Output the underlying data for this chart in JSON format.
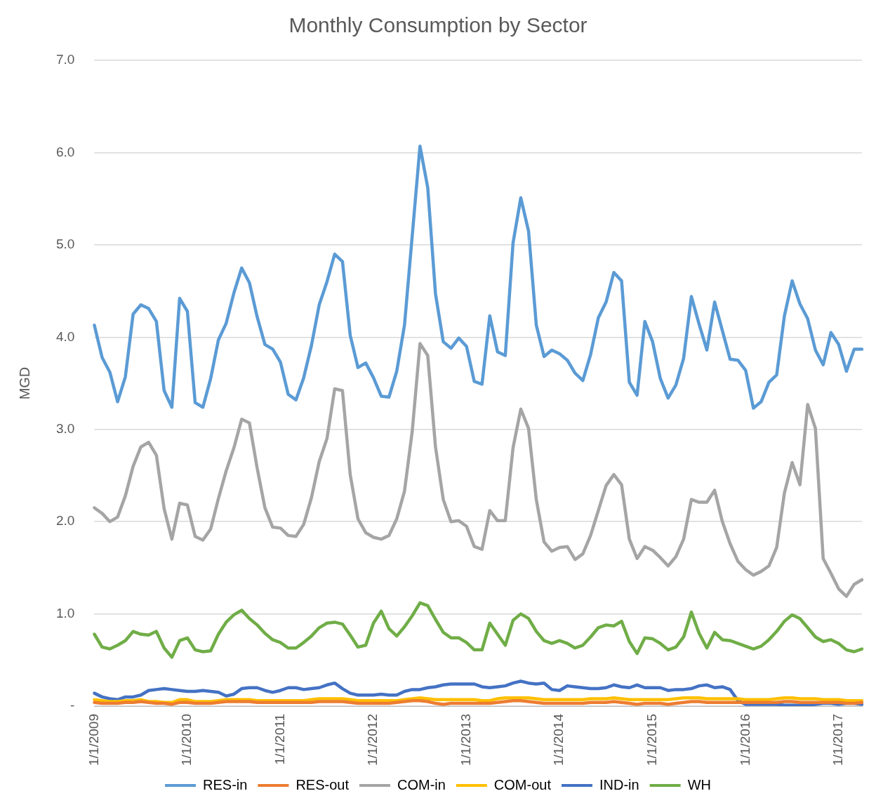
{
  "chart_data": {
    "type": "line",
    "title": "Monthly Consumption by Sector",
    "ylabel": "MGD",
    "categories": [
      "1/1/2009",
      null,
      null,
      null,
      null,
      null,
      null,
      null,
      null,
      null,
      null,
      null,
      "1/1/2010",
      null,
      null,
      null,
      null,
      null,
      null,
      null,
      null,
      null,
      null,
      null,
      "1/1/2011",
      null,
      null,
      null,
      null,
      null,
      null,
      null,
      null,
      null,
      null,
      null,
      "1/1/2012",
      null,
      null,
      null,
      null,
      null,
      null,
      null,
      null,
      null,
      null,
      null,
      "1/1/2013",
      null,
      null,
      null,
      null,
      null,
      null,
      null,
      null,
      null,
      null,
      null,
      "1/1/2014",
      null,
      null,
      null,
      null,
      null,
      null,
      null,
      null,
      null,
      null,
      null,
      "1/1/2015",
      null,
      null,
      null,
      null,
      null,
      null,
      null,
      null,
      null,
      null,
      null,
      "1/1/2016",
      null,
      null,
      null,
      null,
      null,
      null,
      null,
      null,
      null,
      null,
      null,
      "1/1/2017",
      null,
      null,
      null
    ],
    "ylim": [
      0,
      7
    ],
    "yticks": [
      {
        "value": 0,
        "label": "-"
      },
      {
        "value": 1,
        "label": "1.0"
      },
      {
        "value": 2,
        "label": "2.0"
      },
      {
        "value": 3,
        "label": "3.0"
      },
      {
        "value": 4,
        "label": "4.0"
      },
      {
        "value": 5,
        "label": "5.0"
      },
      {
        "value": 6,
        "label": "6.0"
      },
      {
        "value": 7,
        "label": "7.0"
      }
    ],
    "grid": "y",
    "legend": "bottom",
    "marker": "none",
    "line_style": "solid",
    "series": [
      {
        "name": "RES-in",
        "color": "#5b9bd5",
        "values": [
          4.13,
          3.78,
          3.62,
          3.3,
          3.57,
          4.25,
          4.35,
          4.31,
          4.17,
          3.42,
          3.24,
          4.42,
          4.28,
          3.29,
          3.24,
          3.55,
          3.97,
          4.15,
          4.48,
          4.75,
          4.59,
          4.22,
          3.92,
          3.87,
          3.73,
          3.38,
          3.32,
          3.56,
          3.91,
          4.35,
          4.6,
          4.9,
          4.82,
          4.02,
          3.67,
          3.72,
          3.56,
          3.36,
          3.35,
          3.63,
          4.13,
          5.1,
          6.07,
          5.62,
          4.47,
          3.95,
          3.88,
          3.99,
          3.9,
          3.52,
          3.49,
          4.23,
          3.84,
          3.8,
          5.02,
          5.51,
          5.15,
          4.13,
          3.79,
          3.86,
          3.82,
          3.75,
          3.61,
          3.53,
          3.81,
          4.21,
          4.38,
          4.7,
          4.61,
          3.51,
          3.37,
          4.17,
          3.95,
          3.55,
          3.34,
          3.48,
          3.77,
          4.44,
          4.14,
          3.86,
          4.38,
          4.07,
          3.76,
          3.75,
          3.64,
          3.23,
          3.3,
          3.51,
          3.59,
          4.23,
          4.61,
          4.36,
          4.2,
          3.86,
          3.7,
          4.05,
          3.92,
          3.63,
          3.87,
          3.87
        ]
      },
      {
        "name": "RES-out",
        "color": "#ed7d31",
        "values": [
          0.04,
          0.03,
          0.03,
          0.03,
          0.04,
          0.04,
          0.05,
          0.04,
          0.03,
          0.03,
          0.02,
          0.04,
          0.04,
          0.03,
          0.03,
          0.03,
          0.04,
          0.05,
          0.05,
          0.05,
          0.05,
          0.04,
          0.04,
          0.04,
          0.04,
          0.04,
          0.04,
          0.04,
          0.04,
          0.05,
          0.05,
          0.05,
          0.05,
          0.04,
          0.03,
          0.03,
          0.03,
          0.03,
          0.03,
          0.04,
          0.05,
          0.06,
          0.06,
          0.05,
          0.03,
          0.02,
          0.03,
          0.03,
          0.03,
          0.03,
          0.03,
          0.03,
          0.04,
          0.05,
          0.06,
          0.06,
          0.05,
          0.04,
          0.03,
          0.03,
          0.03,
          0.03,
          0.03,
          0.03,
          0.04,
          0.04,
          0.04,
          0.05,
          0.04,
          0.03,
          0.02,
          0.03,
          0.03,
          0.03,
          0.02,
          0.03,
          0.04,
          0.05,
          0.05,
          0.04,
          0.04,
          0.04,
          0.04,
          0.04,
          0.04,
          0.04,
          0.04,
          0.04,
          0.04,
          0.05,
          0.05,
          0.04,
          0.04,
          0.04,
          0.04,
          0.04,
          0.04,
          0.03,
          0.03,
          0.04
        ]
      },
      {
        "name": "COM-in",
        "color": "#a5a5a5",
        "values": [
          2.15,
          2.09,
          2.0,
          2.05,
          2.28,
          2.6,
          2.81,
          2.86,
          2.72,
          2.14,
          1.81,
          2.2,
          2.18,
          1.84,
          1.8,
          1.92,
          2.25,
          2.55,
          2.8,
          3.11,
          3.07,
          2.58,
          2.15,
          1.94,
          1.93,
          1.85,
          1.84,
          1.97,
          2.26,
          2.65,
          2.9,
          3.44,
          3.42,
          2.51,
          2.03,
          1.88,
          1.83,
          1.81,
          1.85,
          2.03,
          2.33,
          2.98,
          3.93,
          3.8,
          2.81,
          2.24,
          2.0,
          2.01,
          1.95,
          1.73,
          1.7,
          2.12,
          2.01,
          2.01,
          2.8,
          3.22,
          3.01,
          2.24,
          1.78,
          1.68,
          1.72,
          1.73,
          1.59,
          1.65,
          1.85,
          2.12,
          2.39,
          2.51,
          2.4,
          1.81,
          1.6,
          1.73,
          1.69,
          1.61,
          1.52,
          1.62,
          1.81,
          2.24,
          2.21,
          2.21,
          2.34,
          2.0,
          1.76,
          1.57,
          1.48,
          1.42,
          1.46,
          1.52,
          1.72,
          2.31,
          2.64,
          2.4,
          3.27,
          3.01,
          1.6,
          1.44,
          1.27,
          1.19,
          1.32,
          1.37
        ]
      },
      {
        "name": "COM-out",
        "color": "#ffc000",
        "values": [
          0.07,
          0.06,
          0.05,
          0.05,
          0.06,
          0.06,
          0.07,
          0.05,
          0.05,
          0.04,
          0.04,
          0.07,
          0.07,
          0.05,
          0.05,
          0.05,
          0.06,
          0.07,
          0.07,
          0.07,
          0.07,
          0.06,
          0.06,
          0.06,
          0.06,
          0.06,
          0.06,
          0.06,
          0.07,
          0.08,
          0.08,
          0.08,
          0.08,
          0.07,
          0.06,
          0.06,
          0.06,
          0.06,
          0.06,
          0.06,
          0.07,
          0.08,
          0.09,
          0.08,
          0.07,
          0.07,
          0.07,
          0.07,
          0.07,
          0.07,
          0.06,
          0.06,
          0.08,
          0.09,
          0.09,
          0.09,
          0.09,
          0.08,
          0.07,
          0.07,
          0.07,
          0.07,
          0.07,
          0.07,
          0.08,
          0.08,
          0.08,
          0.09,
          0.08,
          0.07,
          0.07,
          0.07,
          0.07,
          0.07,
          0.07,
          0.08,
          0.09,
          0.09,
          0.09,
          0.08,
          0.08,
          0.08,
          0.08,
          0.08,
          0.07,
          0.07,
          0.07,
          0.07,
          0.08,
          0.09,
          0.09,
          0.08,
          0.08,
          0.08,
          0.07,
          0.07,
          0.07,
          0.06,
          0.06,
          0.06
        ]
      },
      {
        "name": "IND-in",
        "color": "#4472c4",
        "values": [
          0.14,
          0.1,
          0.08,
          0.07,
          0.1,
          0.1,
          0.12,
          0.17,
          0.18,
          0.19,
          0.18,
          0.17,
          0.16,
          0.16,
          0.17,
          0.16,
          0.15,
          0.11,
          0.13,
          0.19,
          0.2,
          0.2,
          0.17,
          0.15,
          0.17,
          0.2,
          0.2,
          0.18,
          0.19,
          0.2,
          0.23,
          0.25,
          0.19,
          0.14,
          0.12,
          0.12,
          0.12,
          0.13,
          0.12,
          0.12,
          0.16,
          0.18,
          0.18,
          0.2,
          0.21,
          0.23,
          0.24,
          0.24,
          0.24,
          0.24,
          0.21,
          0.2,
          0.21,
          0.22,
          0.25,
          0.27,
          0.25,
          0.24,
          0.25,
          0.18,
          0.17,
          0.22,
          0.21,
          0.2,
          0.19,
          0.19,
          0.2,
          0.23,
          0.21,
          0.2,
          0.23,
          0.2,
          0.2,
          0.2,
          0.17,
          0.18,
          0.18,
          0.19,
          0.22,
          0.23,
          0.2,
          0.21,
          0.18,
          0.06,
          0.02,
          0.02,
          0.02,
          0.02,
          0.02,
          0.01,
          0.01,
          0.01,
          0.01,
          0.02,
          0.03,
          0.03,
          0.02,
          0.03,
          0.03,
          0.02
        ]
      },
      {
        "name": "WH",
        "color": "#70ad47",
        "values": [
          0.78,
          0.64,
          0.62,
          0.66,
          0.71,
          0.81,
          0.78,
          0.77,
          0.81,
          0.63,
          0.53,
          0.71,
          0.74,
          0.61,
          0.59,
          0.6,
          0.78,
          0.91,
          0.99,
          1.04,
          0.95,
          0.88,
          0.79,
          0.72,
          0.69,
          0.63,
          0.63,
          0.69,
          0.76,
          0.85,
          0.9,
          0.91,
          0.89,
          0.77,
          0.64,
          0.66,
          0.9,
          1.03,
          0.84,
          0.76,
          0.86,
          0.98,
          1.12,
          1.09,
          0.94,
          0.8,
          0.74,
          0.74,
          0.69,
          0.61,
          0.61,
          0.9,
          0.78,
          0.66,
          0.93,
          1.0,
          0.95,
          0.81,
          0.71,
          0.68,
          0.71,
          0.68,
          0.63,
          0.66,
          0.75,
          0.85,
          0.88,
          0.87,
          0.92,
          0.7,
          0.57,
          0.74,
          0.73,
          0.68,
          0.61,
          0.64,
          0.75,
          1.02,
          0.79,
          0.63,
          0.8,
          0.72,
          0.71,
          0.68,
          0.65,
          0.62,
          0.65,
          0.72,
          0.81,
          0.92,
          0.99,
          0.95,
          0.85,
          0.75,
          0.7,
          0.72,
          0.68,
          0.61,
          0.59,
          0.62
        ]
      }
    ]
  }
}
